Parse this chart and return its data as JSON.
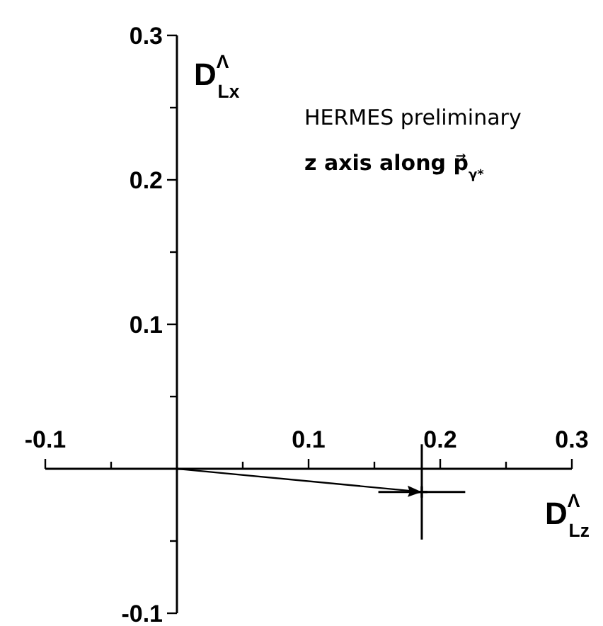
{
  "chart_data": {
    "type": "scatter",
    "xlabel": "D$^{Λ}$$_{Lz}$",
    "ylabel": "D$^{Λ}$$_{Lx}$",
    "annotations": [
      "HERMES preliminary",
      "z axis along p⃗$_{γ*}$"
    ],
    "series": [
      {
        "color": "#000000",
        "x": [
          0.186
        ],
        "values": [
          -0.016
        ],
        "errors": [
          0.033
        ],
        "xerrors": [
          0.033
        ]
      }
    ],
    "marker": "cross",
    "grid": false,
    "xlim": [
      -0.1,
      0.3
    ],
    "ylim": [
      -0.1,
      0.3
    ],
    "xticks": [
      -0.1,
      {
        "value": -0.05,
        "label": null
      },
      {
        "value": 0.05,
        "label": null
      },
      0.1,
      {
        "value": 0.15,
        "label": null
      },
      0.2,
      {
        "value": 0.25,
        "label": null
      },
      0.3
    ],
    "yticks": [
      -0.1,
      {
        "value": -0.05,
        "label": null
      },
      {
        "value": 0.05,
        "label": null
      },
      0.1,
      {
        "value": 0.15,
        "label": null
      },
      0.2,
      {
        "value": 0.25,
        "label": null
      },
      0.3
    ]
  }
}
